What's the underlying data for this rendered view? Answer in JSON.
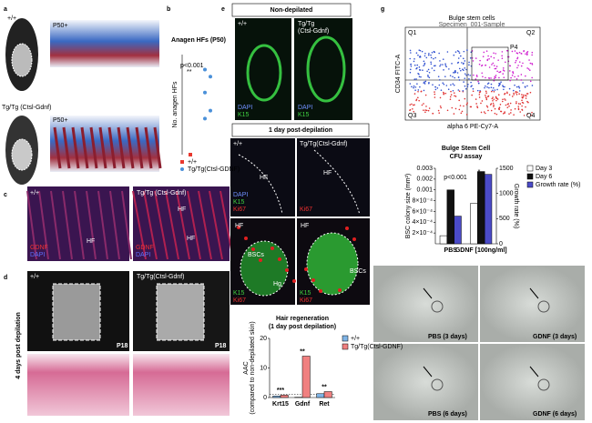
{
  "panels": {
    "a": {
      "letter": "a",
      "top_genotype": "+/+",
      "top_age": "P50+",
      "bottom_genotype": "Tg/Tg (Ctsl-Gdnf)",
      "bottom_age": "P50+"
    },
    "b": {
      "letter": "b",
      "p_value": "p<0.001",
      "significance": "**"
    },
    "c": {
      "letter": "c",
      "left_genotype": "+/+",
      "right_genotype": "Tg/Tg (Ctsl-Gdnf)",
      "hf_labels": [
        "HF",
        "HF",
        "HF"
      ],
      "left_stain": [
        "GDNF",
        "DAPI"
      ],
      "right_stain": [
        "GDNF",
        "DAPI"
      ]
    },
    "d": {
      "letter": "d",
      "left_genotype": "+/+",
      "right_genotype": "Tg/Tg(Ctsl-Gdnf)",
      "left_age": "P18",
      "right_age": "P18",
      "side_label": "4 days post depilation"
    },
    "e": {
      "letter": "e",
      "top_header": "Non-depilated",
      "top_left_genotype": "+/+",
      "top_right_genotype": [
        "Tg/Tg",
        "(Ctsl-Gdnf)"
      ],
      "top_left_stain": [
        "DAPI",
        "K15"
      ],
      "top_right_stain": [
        "DAPI",
        "K15"
      ],
      "bottom_header": "1 day post-depilation",
      "bottom_left_genotype": "+/+",
      "bottom_right_genotype": "Tg/Tg(Ctsl-Gdnf)",
      "hf_labels": [
        "HF",
        "HF",
        "HF",
        "HF"
      ],
      "row1_stain": [
        "DAPI",
        "K15",
        "Ki67"
      ],
      "row1_right_stain": "Ki67",
      "row2_left_stain": [
        "K15",
        "Ki67"
      ],
      "row2_right_stain": [
        "K15",
        "Ki67"
      ],
      "bscs": [
        "BSCs",
        "BSCs"
      ],
      "hg": "Hg"
    },
    "g": {
      "letter": "g",
      "flow_title": "Bulge stem cells",
      "specimen": "Specimen_001-Sample",
      "quadrants": [
        "Q1",
        "Q2",
        "Q3",
        "Q4"
      ],
      "gate": "P4",
      "flow_y": "CD34 FITC-A",
      "flow_x": "alpha 6 PE-Cy7-A",
      "culture_labels": [
        "PBS (3 days)",
        "GDNF (3 days)",
        "PBS (6 days)",
        "GDNF (6 days)"
      ]
    }
  },
  "chart_data": [
    {
      "type": "strip",
      "title": "Anagen HFs (P50)",
      "y_label": "No. anagen HFs",
      "ylim": [
        0,
        10
      ],
      "series": [
        {
          "name": "+/+",
          "color": "#e8382e",
          "marker": "square",
          "values": [
            0
          ]
        },
        {
          "name": "Tg/Tg(Ctsl-GDNF)",
          "color": "#4a90d9",
          "marker": "circle",
          "values": [
            8.5,
            7.8,
            6.2,
            4.4,
            3.6
          ]
        }
      ]
    },
    {
      "type": "bar",
      "title": "Hair regeneration",
      "subtitle": "(1 day post depilation)",
      "y_label": "AAC",
      "y_label_note": "(compared to non-depilated skin)",
      "categories": [
        "Krt15",
        "Gdnf",
        "Ret"
      ],
      "series": [
        {
          "name": "+/+",
          "color": "#7fb4e6",
          "values": [
            0.5,
            0.1,
            1.3
          ]
        },
        {
          "name": "Tg/Tg(Ctsl-GDNF)",
          "color": "#f08080",
          "values": [
            0.8,
            14,
            2
          ]
        }
      ],
      "ylim": [
        0,
        20
      ],
      "yticks": [
        0,
        10,
        20
      ],
      "reference_line": 1,
      "significance": [
        "***",
        "**",
        "**"
      ]
    },
    {
      "type": "bar",
      "title": "Bulge Stem Cell",
      "subtitle": "CFU assay",
      "y_label": "BSC colony size (mm²)",
      "y2_label": "Growth rate (%)",
      "categories": [
        "PBS",
        "GDNF [100ng/ml]"
      ],
      "series": [
        {
          "name": "Day 3",
          "color": "#ffffff",
          "values": [
            0.00015,
            0.00075
          ]
        },
        {
          "name": "Day 6",
          "color": "#111111",
          "values": [
            0.001,
            0.0027
          ]
        },
        {
          "name": "Growth rate (%)",
          "color": "#4b4bc8",
          "axis": "y2",
          "values": [
            550,
            1380
          ]
        }
      ],
      "ylim": [
        0,
        0.003
      ],
      "yticks": [
        {
          "value": 0.0002,
          "label": "2×10⁻⁴"
        },
        {
          "value": 0.0004,
          "label": "4×10⁻⁴"
        },
        {
          "value": 0.0006,
          "label": "6×10⁻⁴"
        },
        {
          "value": 0.0008,
          "label": "8×10⁻⁴"
        },
        0.001,
        0.002,
        0.003
      ],
      "y2lim": [
        0,
        1500
      ],
      "y2ticks": [
        0,
        500,
        1000,
        1500
      ],
      "annotations": [
        "p<0.001",
        "*"
      ]
    }
  ]
}
